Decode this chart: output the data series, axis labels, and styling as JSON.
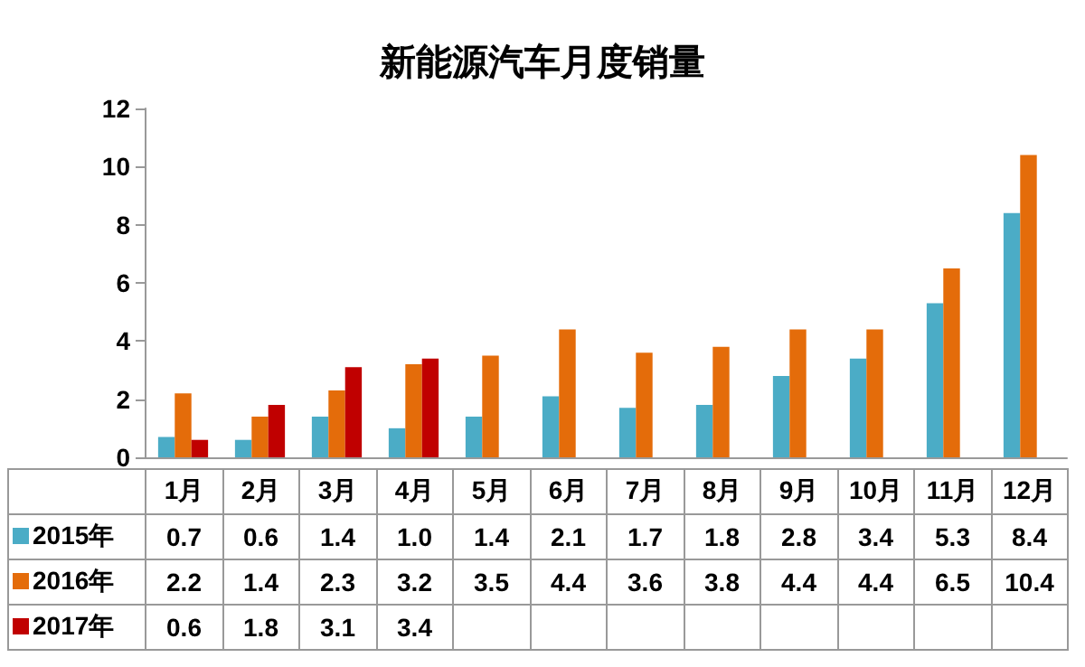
{
  "chart_data": {
    "type": "bar",
    "title": "新能源汽车月度销量",
    "categories": [
      "1月",
      "2月",
      "3月",
      "4月",
      "5月",
      "6月",
      "7月",
      "8月",
      "9月",
      "10月",
      "11月",
      "12月"
    ],
    "series": [
      {
        "name": "2015年",
        "color": "#4bacc6",
        "values": [
          0.7,
          0.6,
          1.4,
          1.0,
          1.4,
          2.1,
          1.7,
          1.8,
          2.8,
          3.4,
          5.3,
          8.4
        ],
        "value_labels": [
          "0.7",
          "0.6",
          "1.4",
          "1.0",
          "1.4",
          "2.1",
          "1.7",
          "1.8",
          "2.8",
          "3.4",
          "5.3",
          "8.4"
        ]
      },
      {
        "name": "2016年",
        "color": "#e46c0a",
        "values": [
          2.2,
          1.4,
          2.3,
          3.2,
          3.5,
          4.4,
          3.6,
          3.8,
          4.4,
          4.4,
          6.5,
          10.4
        ],
        "value_labels": [
          "2.2",
          "1.4",
          "2.3",
          "3.2",
          "3.5",
          "4.4",
          "3.6",
          "3.8",
          "4.4",
          "4.4",
          "6.5",
          "10.4"
        ]
      },
      {
        "name": "2017年",
        "color": "#c00000",
        "values": [
          0.6,
          1.8,
          3.1,
          3.4,
          null,
          null,
          null,
          null,
          null,
          null,
          null,
          null
        ],
        "value_labels": [
          "0.6",
          "1.8",
          "3.1",
          "3.4",
          null,
          null,
          null,
          null,
          null,
          null,
          null,
          null
        ]
      }
    ],
    "ylim": [
      0,
      12
    ],
    "yticks": [
      0,
      2,
      4,
      6,
      8,
      10,
      12
    ],
    "grid": false,
    "legend": "bottom"
  }
}
